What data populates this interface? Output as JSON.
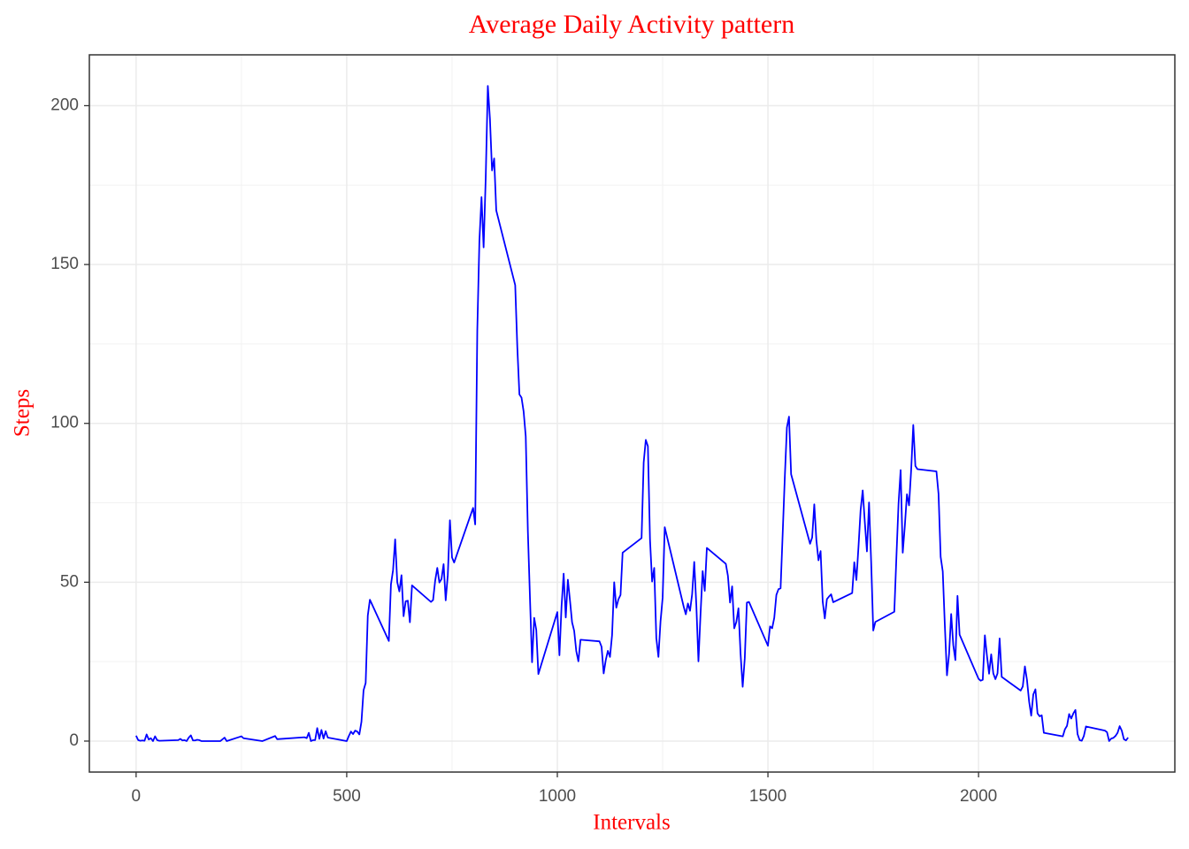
{
  "chart_data": {
    "type": "line",
    "title": "Average Daily Activity pattern",
    "x_label": "Intervals",
    "y_label": "Steps",
    "color": "#0000ff",
    "grid": true,
    "xlim": [
      -111,
      2466
    ],
    "ylim": [
      -9.75,
      216
    ],
    "xticks": [
      0,
      500,
      1000,
      1500,
      2000
    ],
    "yticks": [
      0,
      50,
      100,
      150,
      200
    ],
    "x": [
      0,
      5,
      10,
      15,
      20,
      25,
      30,
      35,
      40,
      45,
      50,
      55,
      100,
      105,
      110,
      115,
      120,
      125,
      130,
      135,
      140,
      145,
      150,
      155,
      200,
      210,
      215,
      250,
      255,
      300,
      330,
      335,
      400,
      405,
      410,
      415,
      420,
      425,
      430,
      435,
      440,
      445,
      450,
      455,
      500,
      505,
      510,
      515,
      520,
      525,
      530,
      535,
      540,
      545,
      550,
      555,
      600,
      605,
      610,
      615,
      620,
      625,
      630,
      635,
      640,
      645,
      650,
      655,
      700,
      705,
      710,
      715,
      720,
      725,
      730,
      735,
      740,
      745,
      750,
      755,
      800,
      805,
      810,
      815,
      820,
      825,
      830,
      835,
      840,
      845,
      850,
      855,
      900,
      905,
      910,
      915,
      920,
      925,
      930,
      935,
      940,
      945,
      950,
      955,
      1000,
      1005,
      1010,
      1015,
      1020,
      1025,
      1030,
      1035,
      1040,
      1045,
      1050,
      1055,
      1100,
      1105,
      1110,
      1115,
      1120,
      1125,
      1130,
      1135,
      1140,
      1145,
      1150,
      1155,
      1200,
      1205,
      1210,
      1215,
      1220,
      1225,
      1230,
      1235,
      1240,
      1245,
      1250,
      1255,
      1300,
      1305,
      1310,
      1315,
      1320,
      1325,
      1330,
      1335,
      1340,
      1345,
      1350,
      1355,
      1400,
      1405,
      1410,
      1415,
      1420,
      1425,
      1430,
      1435,
      1440,
      1445,
      1450,
      1455,
      1500,
      1505,
      1510,
      1515,
      1520,
      1525,
      1530,
      1535,
      1540,
      1545,
      1550,
      1555,
      1600,
      1605,
      1610,
      1615,
      1620,
      1625,
      1630,
      1635,
      1640,
      1645,
      1650,
      1655,
      1700,
      1705,
      1710,
      1715,
      1720,
      1725,
      1730,
      1735,
      1740,
      1745,
      1750,
      1755,
      1800,
      1805,
      1810,
      1815,
      1820,
      1825,
      1830,
      1835,
      1840,
      1845,
      1850,
      1855,
      1900,
      1905,
      1910,
      1915,
      1920,
      1925,
      1930,
      1935,
      1940,
      1945,
      1950,
      1955,
      2000,
      2005,
      2010,
      2015,
      2020,
      2025,
      2030,
      2035,
      2040,
      2045,
      2050,
      2055,
      2100,
      2105,
      2110,
      2115,
      2120,
      2125,
      2130,
      2135,
      2140,
      2145,
      2150,
      2155,
      2200,
      2205,
      2210,
      2215,
      2220,
      2225,
      2230,
      2235,
      2240,
      2245,
      2250,
      2255,
      2300,
      2305,
      2310,
      2315,
      2320,
      2325,
      2330,
      2335,
      2340,
      2345,
      2350,
      2355
    ],
    "values": [
      1.7,
      0.3,
      0.1,
      0.2,
      0.1,
      2.1,
      0.5,
      0.9,
      0,
      1.5,
      0.3,
      0.1,
      0.3,
      0.7,
      0.2,
      0.3,
      0,
      1.1,
      1.8,
      0.2,
      0.2,
      0.4,
      0.3,
      0,
      0,
      1.1,
      0,
      1.5,
      0.9,
      0,
      1.6,
      0.6,
      1.2,
      0.9,
      2.6,
      0,
      0.3,
      0.3,
      4.1,
      0.7,
      3.5,
      0.8,
      3.1,
      1.1,
      0,
      1.6,
      3.0,
      2.2,
      3.3,
      3.0,
      2.1,
      6.1,
      16.0,
      18.3,
      39.5,
      44.5,
      31.5,
      49.3,
      53.8,
      63.5,
      50.0,
      47.1,
      52.2,
      39.3,
      44.0,
      44.2,
      37.4,
      49.0,
      43.8,
      44.4,
      50.5,
      54.5,
      49.9,
      51.0,
      55.7,
      44.3,
      52.3,
      69.5,
      57.8,
      56.2,
      73.4,
      68.2,
      129.4,
      157.5,
      171.2,
      155.4,
      177.3,
      206.2,
      195.9,
      179.6,
      183.4,
      167.0,
      143.5,
      124.0,
      109.1,
      108.1,
      103.7,
      95.9,
      66.2,
      45.2,
      24.8,
      38.8,
      35.0,
      21.1,
      40.6,
      27.0,
      42.4,
      52.7,
      38.9,
      50.8,
      44.3,
      37.4,
      34.7,
      28.3,
      25.1,
      31.9,
      31.4,
      29.7,
      21.3,
      25.5,
      28.4,
      26.5,
      33.4,
      50.0,
      42.0,
      44.6,
      46.0,
      59.3,
      63.9,
      87.7,
      94.8,
      92.8,
      63.4,
      50.2,
      54.5,
      32.4,
      26.5,
      37.7,
      45.1,
      67.3,
      42.3,
      39.9,
      43.3,
      41.0,
      46.2,
      56.4,
      42.8,
      25.1,
      40.0,
      53.5,
      47.3,
      60.8,
      55.8,
      52.0,
      43.6,
      48.7,
      35.5,
      37.5,
      41.8,
      27.5,
      17.1,
      26.1,
      43.6,
      43.8,
      30.0,
      36.1,
      35.5,
      38.8,
      46.0,
      47.8,
      48.1,
      65.3,
      82.9,
      98.7,
      102.1,
      84.0,
      62.1,
      64.1,
      74.5,
      63.2,
      56.9,
      59.8,
      43.9,
      38.6,
      44.7,
      45.5,
      46.2,
      43.7,
      46.6,
      56.3,
      50.7,
      61.2,
      72.7,
      78.9,
      68.9,
      59.7,
      75.1,
      56.5,
      34.8,
      37.5,
      40.7,
      58.0,
      74.7,
      85.3,
      59.3,
      67.8,
      77.7,
      74.2,
      85.3,
      99.5,
      86.6,
      85.6,
      84.9,
      77.8,
      58.0,
      53.4,
      36.3,
      20.7,
      27.4,
      40.0,
      30.2,
      25.5,
      45.7,
      33.5,
      19.6,
      19.0,
      19.3,
      33.3,
      26.8,
      21.2,
      27.3,
      21.3,
      19.5,
      21.3,
      32.3,
      20.2,
      15.9,
      17.2,
      23.5,
      19.2,
      12.5,
      8.0,
      14.7,
      16.3,
      8.7,
      7.8,
      8.1,
      2.6,
      1.5,
      3.7,
      4.8,
      8.5,
      7.1,
      8.7,
      9.8,
      2.2,
      0.3,
      0.1,
      1.6,
      4.6,
      3.3,
      2.8,
      0,
      0.8,
      1.0,
      1.6,
      2.6,
      4.7,
      3.3,
      0.6,
      0.2,
      1.1
    ]
  }
}
